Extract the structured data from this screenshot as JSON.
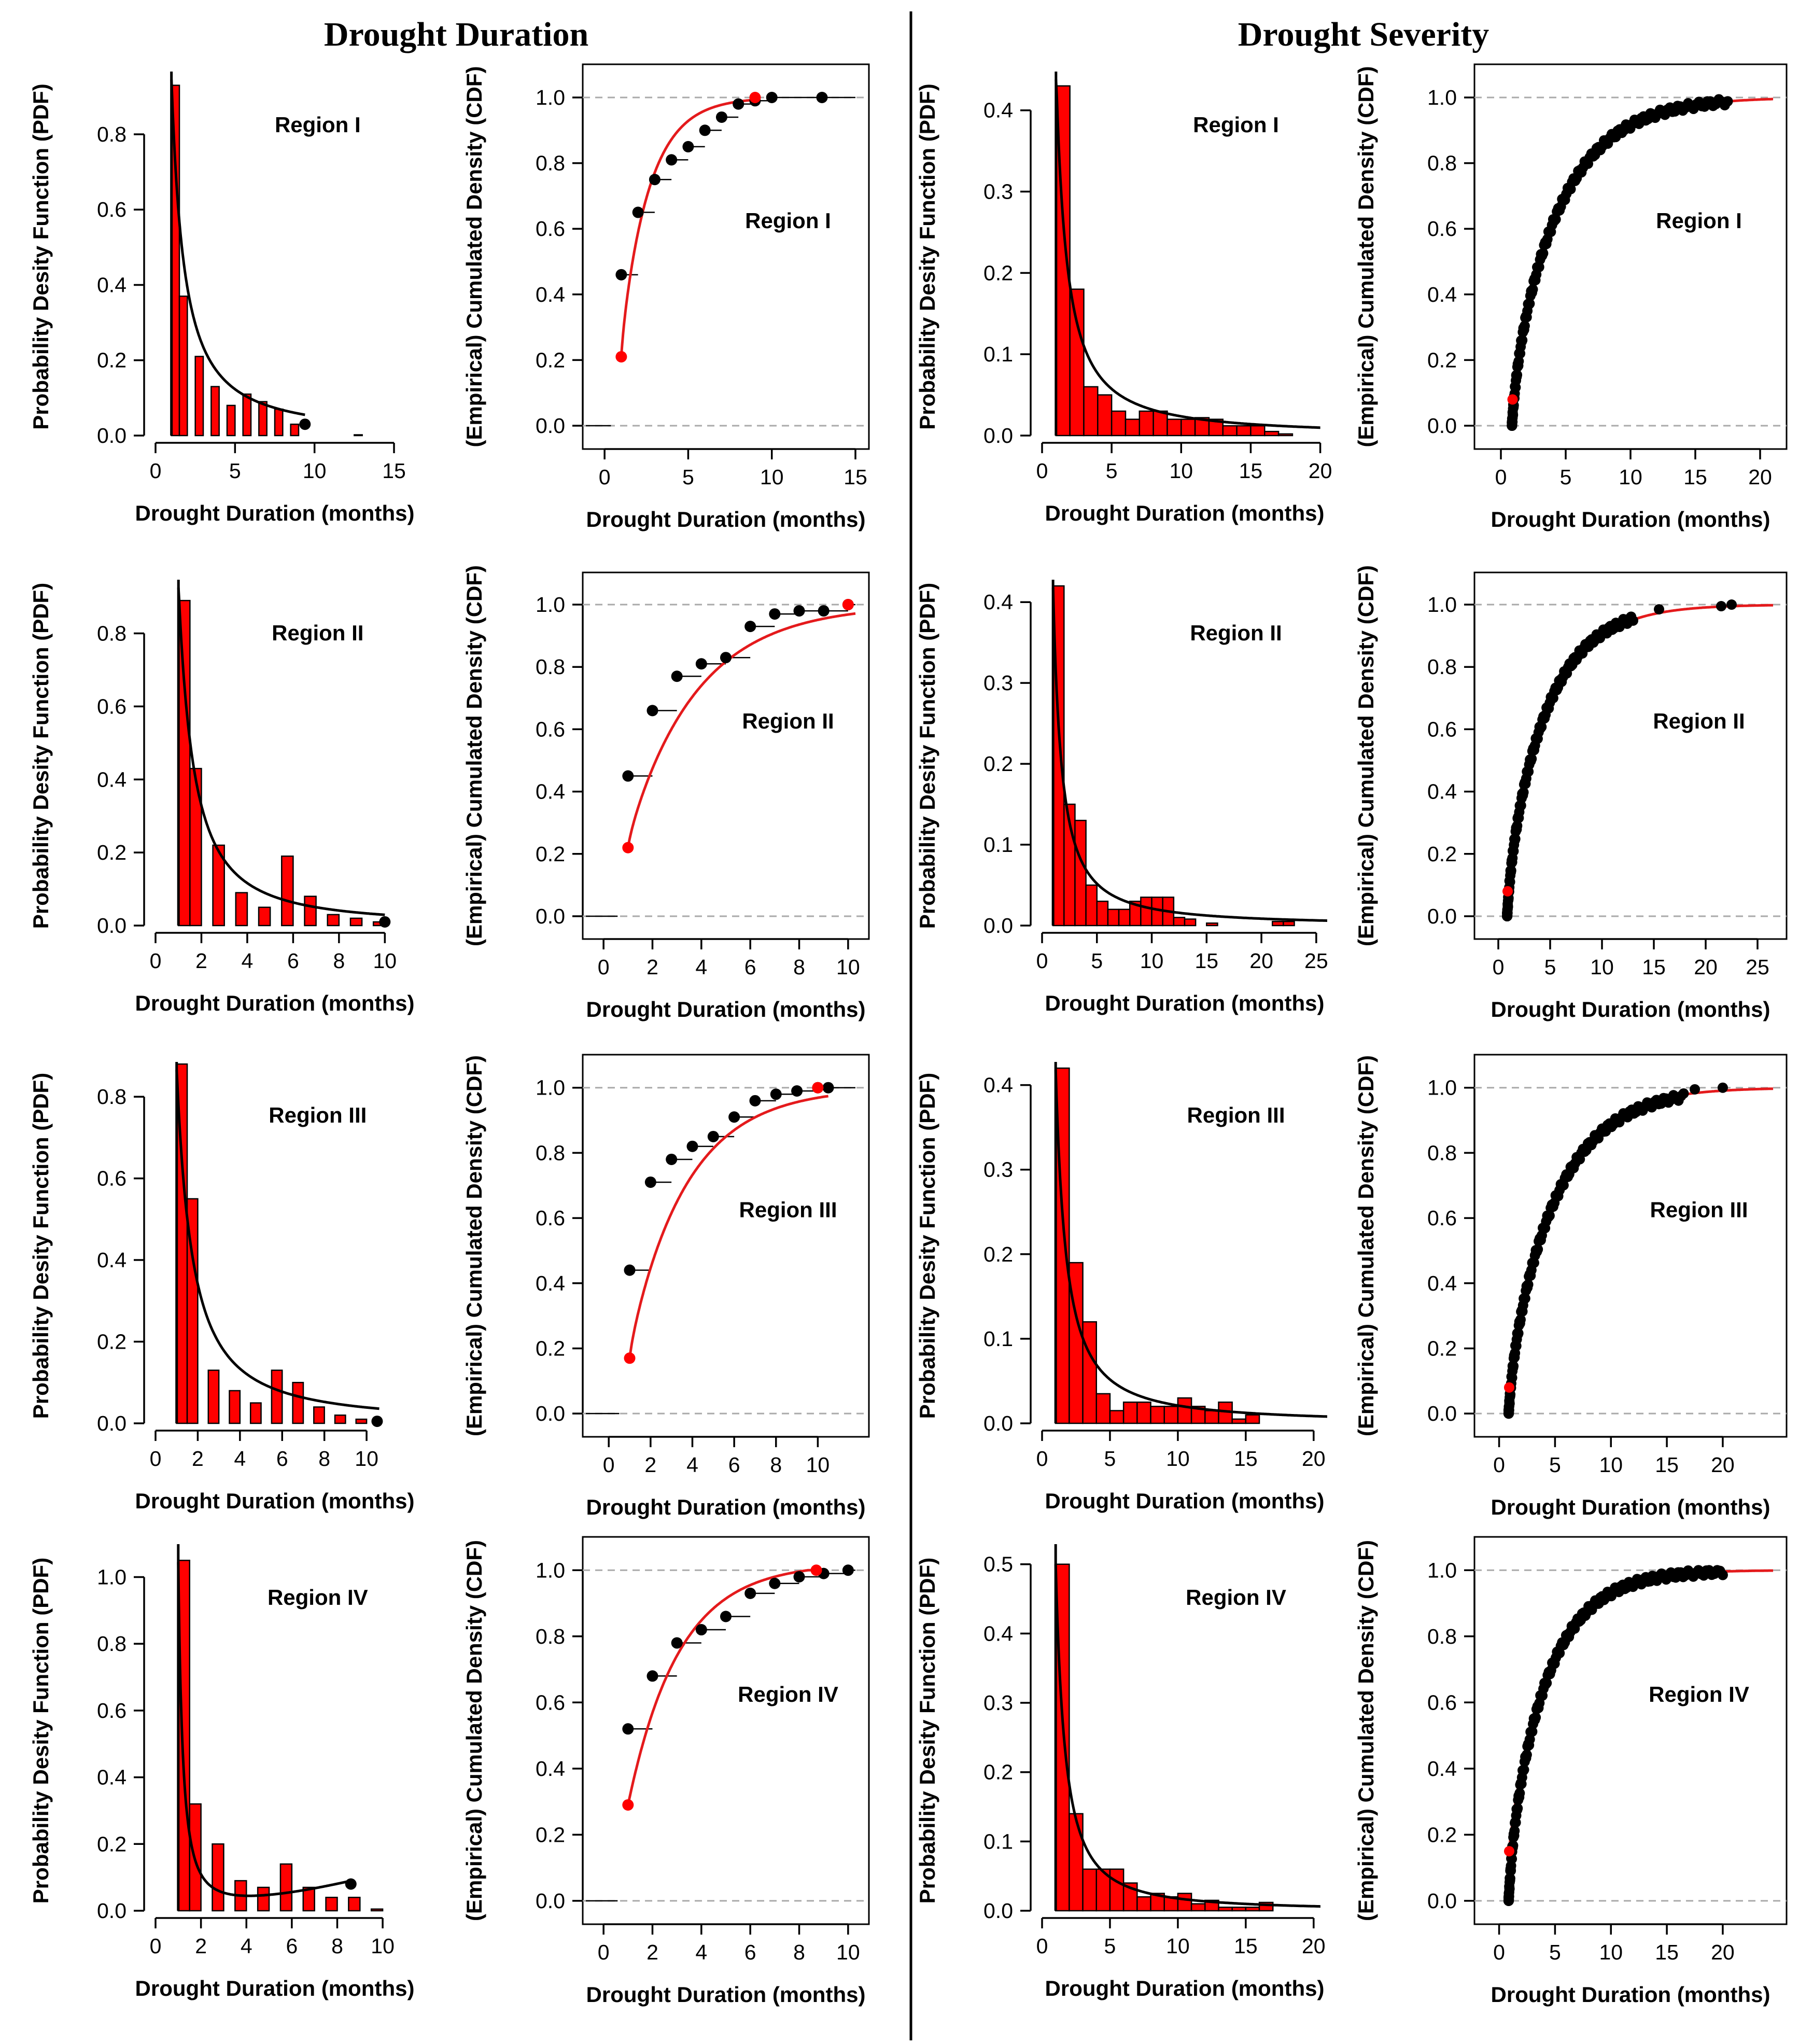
{
  "titles": {
    "left": "Drought Duration",
    "right": "Drought Severity"
  },
  "colors": {
    "bar": "#ff0000",
    "fit_pdf": "#000000",
    "fit_cdf": "#e41a1c",
    "point": "#000000",
    "first_point": "#ff0000",
    "refline": "#aaaaaa"
  },
  "chart_data": [
    {
      "id": "dd-pdf-1",
      "type": "bar",
      "region": "Region I",
      "xlabel": "Drought Duration (months)",
      "ylabel": "Probability Desity Function (PDF)",
      "xlim": [
        0,
        15
      ],
      "ylim": [
        0,
        0.95
      ],
      "xticks": [
        0,
        5,
        10,
        15
      ],
      "yticks": [
        0.0,
        0.2,
        0.4,
        0.6,
        0.8
      ],
      "bins": [
        [
          1,
          1.5,
          0.93
        ],
        [
          1.5,
          2,
          0.37
        ],
        [
          2.5,
          3,
          0.21
        ],
        [
          3.5,
          4,
          0.13
        ],
        [
          4.5,
          5,
          0.08
        ],
        [
          5.5,
          6,
          0.11
        ],
        [
          6.5,
          7,
          0.09
        ],
        [
          7.5,
          8,
          0.07
        ],
        [
          8.5,
          9,
          0.03
        ],
        [
          12.5,
          13,
          0.002
        ]
      ],
      "pdf_fit": {
        "type": "power",
        "x0": 1,
        "a": 0.95,
        "b": 1.27,
        "xmax": 9.4
      },
      "end_point": [
        9.4,
        0.03
      ]
    },
    {
      "id": "dd-cdf-1",
      "type": "scatter",
      "region": "Region I",
      "xlabel": "Drought Duration (months)",
      "ylabel": "(Empirical) Cumulated Density (CDF)",
      "xlim": [
        -0.5,
        15
      ],
      "ylim": [
        -0.03,
        1.06
      ],
      "xticks": [
        0,
        5,
        10,
        15
      ],
      "yticks": [
        0.0,
        0.2,
        0.4,
        0.6,
        0.8,
        1.0
      ],
      "points": [
        [
          1,
          0.46
        ],
        [
          2,
          0.65
        ],
        [
          3,
          0.75
        ],
        [
          4,
          0.81
        ],
        [
          5,
          0.85
        ],
        [
          6,
          0.9
        ],
        [
          7,
          0.94
        ],
        [
          8,
          0.98
        ],
        [
          9,
          0.99
        ],
        [
          10,
          1.0
        ],
        [
          13,
          1.0
        ]
      ],
      "cdf_fit": {
        "x0": 1,
        "y0": 0.21,
        "xmax": 9,
        "k": 0.58
      }
    },
    {
      "id": "ds-pdf-1",
      "type": "bar",
      "region": "Region I",
      "xlabel": "Drought Duration (months)",
      "ylabel": "Probability Desity Function (PDF)",
      "xlim": [
        0,
        20.5
      ],
      "ylim": [
        0,
        0.44
      ],
      "xticks": [
        0,
        5,
        10,
        15,
        20
      ],
      "yticks": [
        0.0,
        0.1,
        0.2,
        0.3,
        0.4
      ],
      "bins": [
        [
          1,
          2,
          0.43
        ],
        [
          2,
          3,
          0.18
        ],
        [
          3,
          4,
          0.06
        ],
        [
          4,
          5,
          0.05
        ],
        [
          5,
          6,
          0.03
        ],
        [
          6,
          7,
          0.02
        ],
        [
          7,
          8,
          0.03
        ],
        [
          8,
          9,
          0.03
        ],
        [
          9,
          10,
          0.02
        ],
        [
          10,
          11,
          0.02
        ],
        [
          11,
          12,
          0.022
        ],
        [
          12,
          13,
          0.02
        ],
        [
          13,
          14,
          0.012
        ],
        [
          14,
          15,
          0.012
        ],
        [
          15,
          16,
          0.012
        ],
        [
          16,
          17,
          0.005
        ],
        [
          17,
          18,
          0.002
        ]
      ],
      "pdf_fit": {
        "type": "power",
        "x0": 1,
        "a": 0.45,
        "b": 1.28,
        "xmax": 20
      }
    },
    {
      "id": "ds-cdf-1",
      "type": "scatter",
      "region": "Region I",
      "xlabel": "Drought Duration (months)",
      "ylabel": "(Empirical) Cumulated Density (CDF)",
      "xlim": [
        -1,
        21
      ],
      "ylim": [
        -0.03,
        1.06
      ],
      "xticks": [
        0,
        5,
        10,
        15,
        20
      ],
      "yticks": [
        0.0,
        0.2,
        0.4,
        0.6,
        0.8,
        1.0
      ],
      "dense": {
        "x0": 0.85,
        "xmax": 17.5,
        "k": 0.25,
        "y0": 0.0,
        "n": 160
      },
      "cdf_fit": {
        "x0": 0.9,
        "y0": 0.08,
        "xmax": 21,
        "k": 0.26
      }
    },
    {
      "id": "dd-pdf-2",
      "type": "bar",
      "region": "Region II",
      "xlabel": "Drought Duration (months)",
      "ylabel": "Probability Desity Function (PDF)",
      "xlim": [
        0,
        10.4
      ],
      "ylim": [
        0,
        0.93
      ],
      "xticks": [
        0,
        2,
        4,
        6,
        8,
        10
      ],
      "yticks": [
        0.0,
        0.2,
        0.4,
        0.6,
        0.8
      ],
      "bins": [
        [
          1,
          1.5,
          0.89
        ],
        [
          1.5,
          2,
          0.43
        ],
        [
          2.5,
          3,
          0.22
        ],
        [
          3.5,
          4,
          0.09
        ],
        [
          4.5,
          5,
          0.05
        ],
        [
          5.5,
          6,
          0.19
        ],
        [
          6.5,
          7,
          0.08
        ],
        [
          7.5,
          8,
          0.03
        ],
        [
          8.5,
          9,
          0.02
        ],
        [
          9.5,
          10,
          0.01
        ]
      ],
      "pdf_fit": {
        "type": "power",
        "x0": 1,
        "a": 0.93,
        "b": 1.5,
        "xmax": 10
      },
      "end_point": [
        10,
        0.01
      ]
    },
    {
      "id": "dd-cdf-2",
      "type": "scatter",
      "region": "Region II",
      "xlabel": "Drought Duration (months)",
      "ylabel": "(Empirical) Cumulated Density (CDF)",
      "xlim": [
        -0.3,
        10.3
      ],
      "ylim": [
        -0.03,
        1.06
      ],
      "xticks": [
        0,
        2,
        4,
        6,
        8,
        10
      ],
      "yticks": [
        0.0,
        0.2,
        0.4,
        0.6,
        0.8,
        1.0
      ],
      "points": [
        [
          1,
          0.45
        ],
        [
          2,
          0.66
        ],
        [
          3,
          0.77
        ],
        [
          4,
          0.81
        ],
        [
          5,
          0.83
        ],
        [
          6,
          0.93
        ],
        [
          7,
          0.97
        ],
        [
          8,
          0.98
        ],
        [
          9,
          0.98
        ],
        [
          10,
          1.0
        ]
      ],
      "cdf_fit": {
        "x0": 1,
        "y0": 0.22,
        "xmax": 10.3,
        "k": 0.35
      }
    },
    {
      "id": "ds-pdf-2",
      "type": "bar",
      "region": "Region II",
      "xlabel": "Drought Duration (months)",
      "ylabel": "Probability Desity Function (PDF)",
      "xlim": [
        0,
        26
      ],
      "ylim": [
        0,
        0.42
      ],
      "xticks": [
        0,
        5,
        10,
        15,
        20,
        25
      ],
      "yticks": [
        0.0,
        0.1,
        0.2,
        0.3,
        0.4
      ],
      "bins": [
        [
          1,
          2,
          0.42
        ],
        [
          2,
          3,
          0.15
        ],
        [
          3,
          4,
          0.13
        ],
        [
          4,
          5,
          0.05
        ],
        [
          5,
          6,
          0.03
        ],
        [
          6,
          7,
          0.02
        ],
        [
          7,
          8,
          0.02
        ],
        [
          8,
          9,
          0.03
        ],
        [
          9,
          10,
          0.035
        ],
        [
          10,
          11,
          0.035
        ],
        [
          11,
          12,
          0.035
        ],
        [
          12,
          13,
          0.01
        ],
        [
          13,
          14,
          0.008
        ],
        [
          15,
          16,
          0.003
        ],
        [
          21,
          22,
          0.005
        ],
        [
          22,
          23,
          0.005
        ]
      ],
      "pdf_fit": {
        "type": "power",
        "x0": 1,
        "a": 0.42,
        "b": 1.3,
        "xmax": 26
      }
    },
    {
      "id": "ds-cdf-2",
      "type": "scatter",
      "region": "Region II",
      "xlabel": "Drought Duration (months)",
      "ylabel": "(Empirical) Cumulated Density (CDF)",
      "xlim": [
        -1,
        26.5
      ],
      "ylim": [
        -0.03,
        1.06
      ],
      "xticks": [
        0,
        5,
        10,
        15,
        20,
        25
      ],
      "yticks": [
        0.0,
        0.2,
        0.4,
        0.6,
        0.8,
        1.0
      ],
      "dense": {
        "x0": 0.85,
        "xmax": 13,
        "k": 0.24,
        "y0": 0.0,
        "n": 140
      },
      "extra_points": [
        [
          15.5,
          0.985
        ],
        [
          21.5,
          0.995
        ],
        [
          22.5,
          1.0
        ]
      ],
      "cdf_fit": {
        "x0": 0.9,
        "y0": 0.08,
        "xmax": 26.5,
        "k": 0.24
      }
    },
    {
      "id": "dd-pdf-3",
      "type": "bar",
      "region": "Region III",
      "xlabel": "Drought Duration (months)",
      "ylabel": "Probability Desity Function (PDF)",
      "xlim": [
        0,
        11.3
      ],
      "ylim": [
        0,
        0.87
      ],
      "xticks": [
        0,
        2,
        4,
        6,
        8,
        10
      ],
      "yticks": [
        0.0,
        0.2,
        0.4,
        0.6,
        0.8
      ],
      "bins": [
        [
          1,
          1.5,
          0.88
        ],
        [
          1.5,
          2,
          0.55
        ],
        [
          2.5,
          3,
          0.13
        ],
        [
          3.5,
          4,
          0.08
        ],
        [
          4.5,
          5,
          0.05
        ],
        [
          5.5,
          6,
          0.13
        ],
        [
          6.5,
          7,
          0.1
        ],
        [
          7.5,
          8,
          0.04
        ],
        [
          8.5,
          9,
          0.02
        ],
        [
          9.5,
          10,
          0.01
        ]
      ],
      "pdf_fit": {
        "type": "power",
        "x0": 1,
        "a": 0.87,
        "b": 1.35,
        "xmax": 10.6
      },
      "end_point": [
        10.5,
        0.005
      ]
    },
    {
      "id": "dd-cdf-3",
      "type": "scatter",
      "region": "Region III",
      "xlabel": "Drought Duration (months)",
      "ylabel": "(Empirical) Cumulated Density (CDF)",
      "xlim": [
        -0.6,
        11.8
      ],
      "ylim": [
        -0.03,
        1.06
      ],
      "xticks": [
        0,
        2,
        4,
        6,
        8,
        10
      ],
      "yticks": [
        0.0,
        0.2,
        0.4,
        0.6,
        0.8,
        1.0
      ],
      "points": [
        [
          1,
          0.44
        ],
        [
          2,
          0.71
        ],
        [
          3,
          0.78
        ],
        [
          4,
          0.82
        ],
        [
          5,
          0.85
        ],
        [
          6,
          0.91
        ],
        [
          7,
          0.96
        ],
        [
          8,
          0.98
        ],
        [
          9,
          0.99
        ],
        [
          10,
          1.0
        ],
        [
          10.5,
          1.0
        ]
      ],
      "cdf_fit": {
        "x0": 1,
        "y0": 0.17,
        "xmax": 10.5,
        "k": 0.36
      }
    },
    {
      "id": "ds-pdf-3",
      "type": "bar",
      "region": "Region III",
      "xlabel": "Drought Duration (months)",
      "ylabel": "Probability Desity Function (PDF)",
      "xlim": [
        0,
        21
      ],
      "ylim": [
        0,
        0.42
      ],
      "xticks": [
        0,
        5,
        10,
        15,
        20
      ],
      "yticks": [
        0.0,
        0.1,
        0.2,
        0.3,
        0.4
      ],
      "bins": [
        [
          1,
          2,
          0.42
        ],
        [
          2,
          3,
          0.19
        ],
        [
          3,
          4,
          0.12
        ],
        [
          4,
          5,
          0.035
        ],
        [
          5,
          6,
          0.015
        ],
        [
          6,
          7,
          0.025
        ],
        [
          7,
          8,
          0.025
        ],
        [
          8,
          9,
          0.02
        ],
        [
          9,
          10,
          0.02
        ],
        [
          10,
          11,
          0.03
        ],
        [
          11,
          12,
          0.02
        ],
        [
          12,
          13,
          0.015
        ],
        [
          13,
          14,
          0.025
        ],
        [
          14,
          15,
          0.005
        ],
        [
          15,
          16,
          0.01
        ]
      ],
      "pdf_fit": {
        "type": "power",
        "x0": 1,
        "a": 0.42,
        "b": 1.3,
        "xmax": 21
      }
    },
    {
      "id": "ds-cdf-3",
      "type": "scatter",
      "region": "Region III",
      "xlabel": "Drought Duration (months)",
      "ylabel": "(Empirical) Cumulated Density (CDF)",
      "xlim": [
        -1,
        24.5
      ],
      "ylim": [
        -0.03,
        1.06
      ],
      "xticks": [
        0,
        5,
        10,
        15,
        20
      ],
      "yticks": [
        0.0,
        0.2,
        0.4,
        0.6,
        0.8,
        1.0
      ],
      "dense": {
        "x0": 0.85,
        "xmax": 16.5,
        "k": 0.22,
        "y0": 0.0,
        "n": 150
      },
      "extra_points": [
        [
          17.5,
          0.995
        ],
        [
          20,
          1.0
        ]
      ],
      "cdf_fit": {
        "x0": 0.9,
        "y0": 0.08,
        "xmax": 24.5,
        "k": 0.24
      }
    },
    {
      "id": "dd-pdf-4",
      "type": "bar",
      "region": "Region IV",
      "xlabel": "Drought Duration (months)",
      "ylabel": "Probability Desity Function (PDF)",
      "xlim": [
        0,
        10.5
      ],
      "ylim": [
        0,
        1.08
      ],
      "xticks": [
        0,
        2,
        4,
        6,
        8,
        10
      ],
      "yticks": [
        0.0,
        0.2,
        0.4,
        0.6,
        0.8,
        1.0
      ],
      "bins": [
        [
          1,
          1.5,
          1.05
        ],
        [
          1.5,
          2,
          0.32
        ],
        [
          2.5,
          3,
          0.2
        ],
        [
          3.5,
          4,
          0.09
        ],
        [
          4.5,
          5,
          0.07
        ],
        [
          5.5,
          6,
          0.14
        ],
        [
          6.5,
          7,
          0.07
        ],
        [
          7.5,
          8,
          0.04
        ],
        [
          8.5,
          9,
          0.04
        ],
        [
          9.5,
          10,
          0.005
        ]
      ],
      "pdf_fit": {
        "type": "bathtub",
        "x0": 1,
        "xmax": 8.6
      },
      "end_point": [
        8.6,
        0.08
      ]
    },
    {
      "id": "dd-cdf-4",
      "type": "scatter",
      "region": "Region IV",
      "xlabel": "Drought Duration (months)",
      "ylabel": "(Empirical) Cumulated Density (CDF)",
      "xlim": [
        -0.3,
        10.3
      ],
      "ylim": [
        -0.03,
        1.06
      ],
      "xticks": [
        0,
        2,
        4,
        6,
        8,
        10
      ],
      "yticks": [
        0.0,
        0.2,
        0.4,
        0.6,
        0.8,
        1.0
      ],
      "points": [
        [
          1,
          0.52
        ],
        [
          2,
          0.68
        ],
        [
          3,
          0.78
        ],
        [
          4,
          0.82
        ],
        [
          5,
          0.86
        ],
        [
          6,
          0.93
        ],
        [
          7,
          0.96
        ],
        [
          8,
          0.98
        ],
        [
          9,
          0.99
        ],
        [
          10,
          1.0
        ]
      ],
      "cdf_fit": {
        "x0": 1,
        "y0": 0.29,
        "xmax": 8.7,
        "k": 0.48,
        "linear": true
      }
    },
    {
      "id": "ds-pdf-4",
      "type": "bar",
      "region": "Region IV",
      "xlabel": "Drought Duration (months)",
      "ylabel": "Probability Desity Function (PDF)",
      "xlim": [
        0,
        21
      ],
      "ylim": [
        0,
        0.52
      ],
      "xticks": [
        0,
        5,
        10,
        15,
        20
      ],
      "yticks": [
        0.0,
        0.1,
        0.2,
        0.3,
        0.4,
        0.5
      ],
      "bins": [
        [
          1,
          2,
          0.5
        ],
        [
          2,
          3,
          0.14
        ],
        [
          3,
          4,
          0.06
        ],
        [
          4,
          5,
          0.06
        ],
        [
          5,
          6,
          0.06
        ],
        [
          6,
          7,
          0.04
        ],
        [
          7,
          8,
          0.02
        ],
        [
          8,
          9,
          0.025
        ],
        [
          9,
          10,
          0.02
        ],
        [
          10,
          11,
          0.025
        ],
        [
          11,
          12,
          0.01
        ],
        [
          12,
          13,
          0.015
        ],
        [
          13,
          14,
          0.005
        ],
        [
          14,
          15,
          0.005
        ],
        [
          15,
          16,
          0.005
        ],
        [
          16,
          17,
          0.012
        ]
      ],
      "pdf_fit": {
        "type": "power",
        "x0": 1,
        "a": 0.5,
        "b": 1.45,
        "xmax": 20.5
      }
    },
    {
      "id": "ds-cdf-4",
      "type": "scatter",
      "region": "Region IV",
      "xlabel": "Drought Duration (months)",
      "ylabel": "(Empirical) Cumulated Density (CDF)",
      "xlim": [
        -1,
        24.5
      ],
      "ylim": [
        -0.03,
        1.06
      ],
      "xticks": [
        0,
        5,
        10,
        15,
        20
      ],
      "yticks": [
        0.0,
        0.2,
        0.4,
        0.6,
        0.8,
        1.0
      ],
      "dense": {
        "x0": 0.85,
        "xmax": 20,
        "k": 0.27,
        "y0": 0.0,
        "n": 170
      },
      "cdf_fit": {
        "x0": 0.9,
        "y0": 0.15,
        "xmax": 24.5,
        "k": 0.28
      }
    }
  ]
}
